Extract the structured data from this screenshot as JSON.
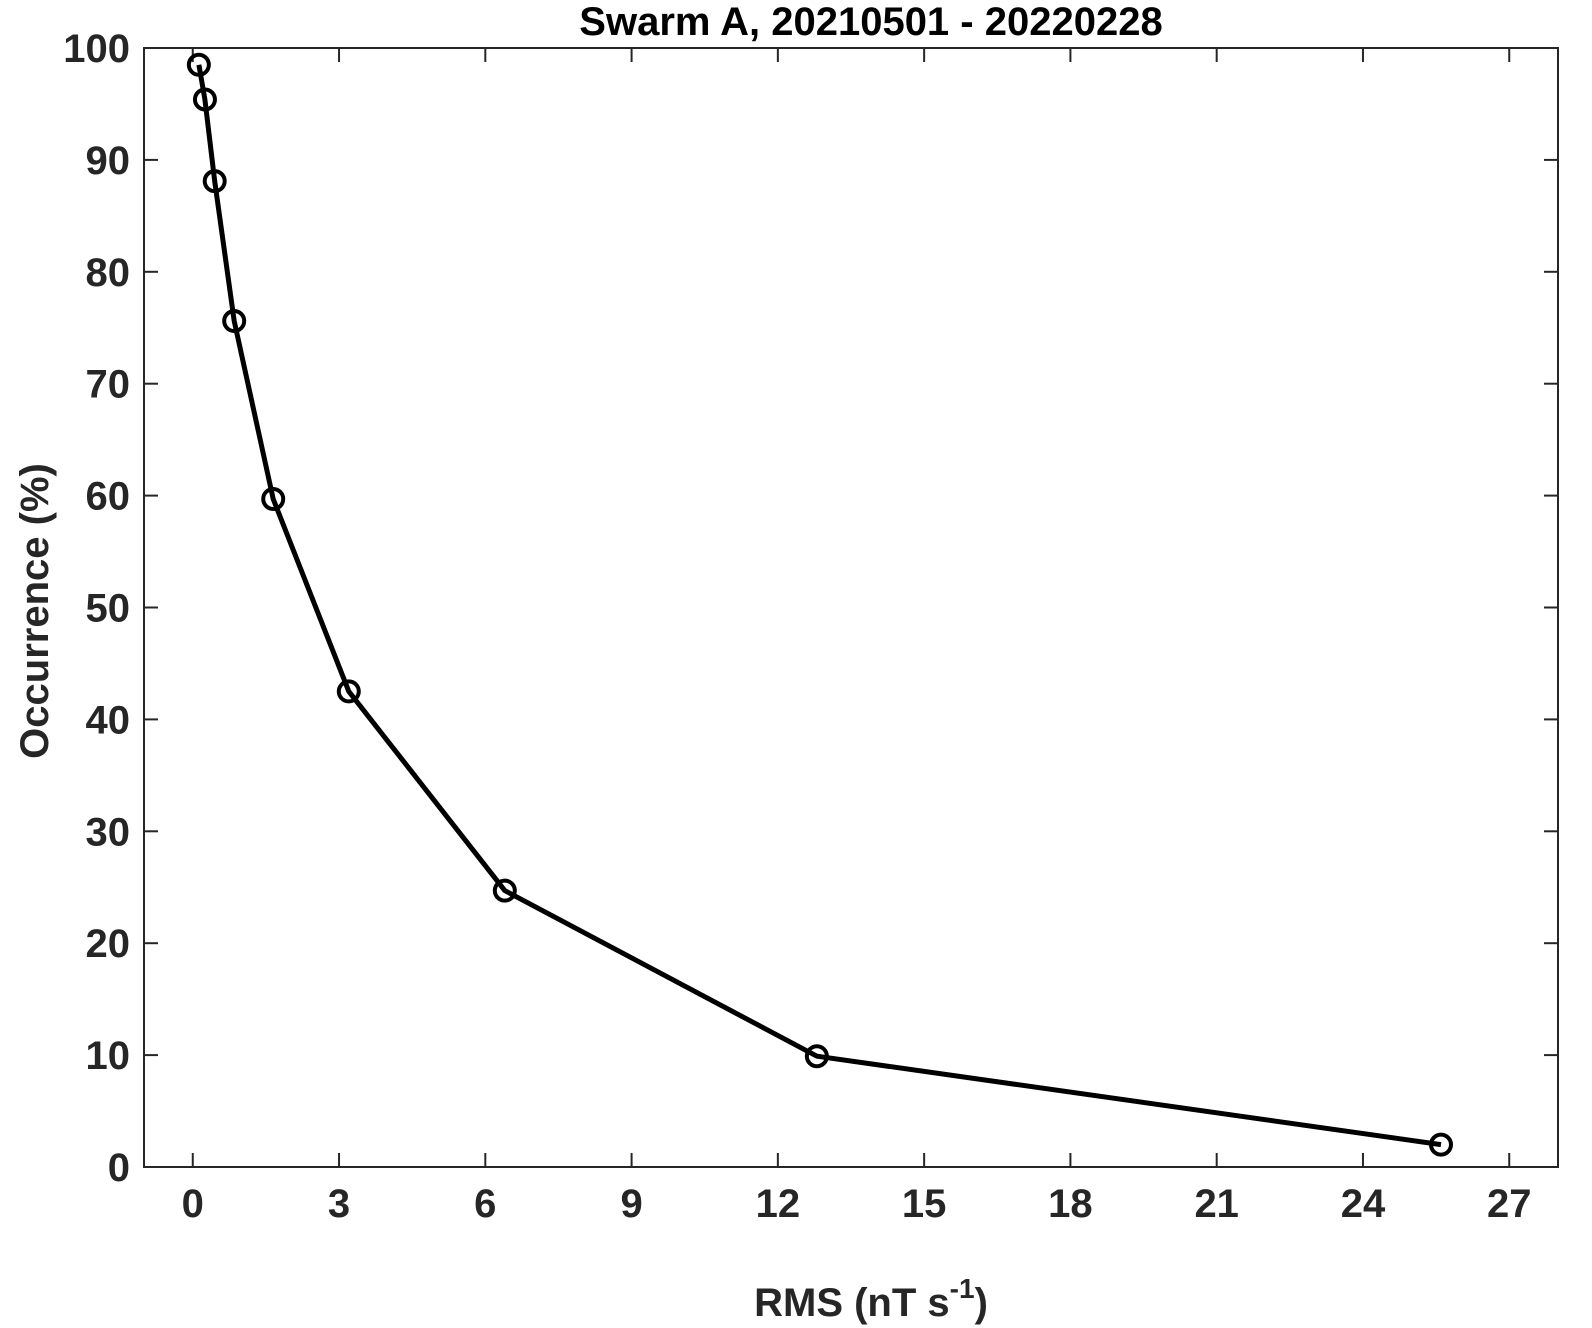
{
  "chart_data": {
    "type": "line",
    "title": "Swarm A, 20210501 - 20220228",
    "xlabel": {
      "main": "RMS (nT s",
      "sup": "-1",
      "close": ")"
    },
    "ylabel": "Occurrence (%)",
    "xlim": [
      -1,
      28
    ],
    "ylim": [
      0,
      100
    ],
    "xticks": [
      0,
      3,
      6,
      9,
      12,
      15,
      18,
      21,
      24,
      27
    ],
    "yticks": [
      0,
      10,
      20,
      30,
      40,
      50,
      60,
      70,
      80,
      90,
      100
    ],
    "grid": false,
    "series": [
      {
        "color": "#000000",
        "marker": "circle",
        "x": [
          0.125,
          0.25,
          0.45,
          0.85,
          1.65,
          3.2,
          6.4,
          12.8,
          25.6
        ],
        "y": [
          98.5,
          95.4,
          88.1,
          75.6,
          59.7,
          42.5,
          24.7,
          9.9,
          2.0
        ]
      }
    ]
  }
}
